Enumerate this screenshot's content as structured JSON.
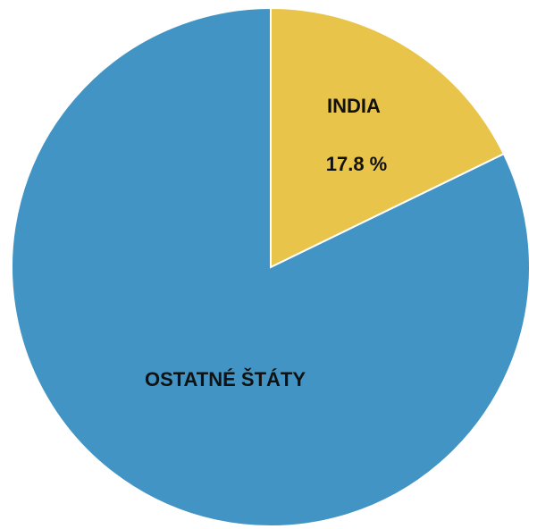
{
  "chart_data": {
    "type": "pie",
    "slices": [
      {
        "label": "INDIA",
        "value_label": "17.8 %",
        "value": 17.8,
        "color": "#E8C44A"
      },
      {
        "label": "OSTATNÉ ŠTÁTY",
        "value_label": "",
        "value": 82.2,
        "color": "#4194C4"
      }
    ],
    "start_angle_deg": 0,
    "direction": "clockwise",
    "legend": "none"
  }
}
